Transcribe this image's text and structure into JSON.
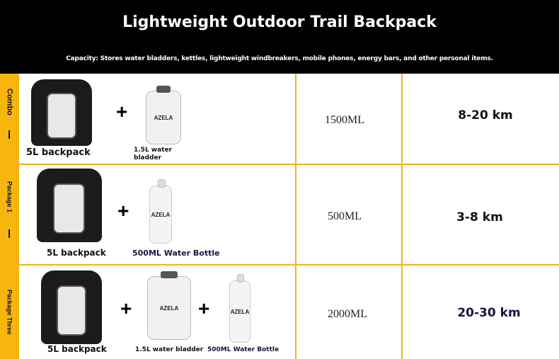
{
  "header": {
    "title": "Lightweight Outdoor Trail Backpack",
    "subtitle": "Capacity: Stores water bladders, kettles, lightweight windbreakers, mobile phones, energy bars, and other personal items."
  },
  "colors": {
    "accent": "#f6b60e",
    "header_bg": "#000000"
  },
  "rows": [
    {
      "side_label": "Combo",
      "item1": "5L backpack",
      "item2": "1.5L water bladder",
      "capacity": "1500ML",
      "distance": "8-20 km",
      "brand": "AZELA"
    },
    {
      "side_label": "Package 1",
      "item1": "5L backpack",
      "item2": "500ML Water Bottle",
      "capacity": "500ML",
      "distance": "3-8 km",
      "brand": "AZELA"
    },
    {
      "side_label": "Package Three",
      "item1": "5L backpack",
      "item2": "1.5L water bladder",
      "item3": "500ML Water Bottle",
      "capacity": "2000ML",
      "distance": "20-30 km",
      "brand": "AZELA"
    }
  ]
}
